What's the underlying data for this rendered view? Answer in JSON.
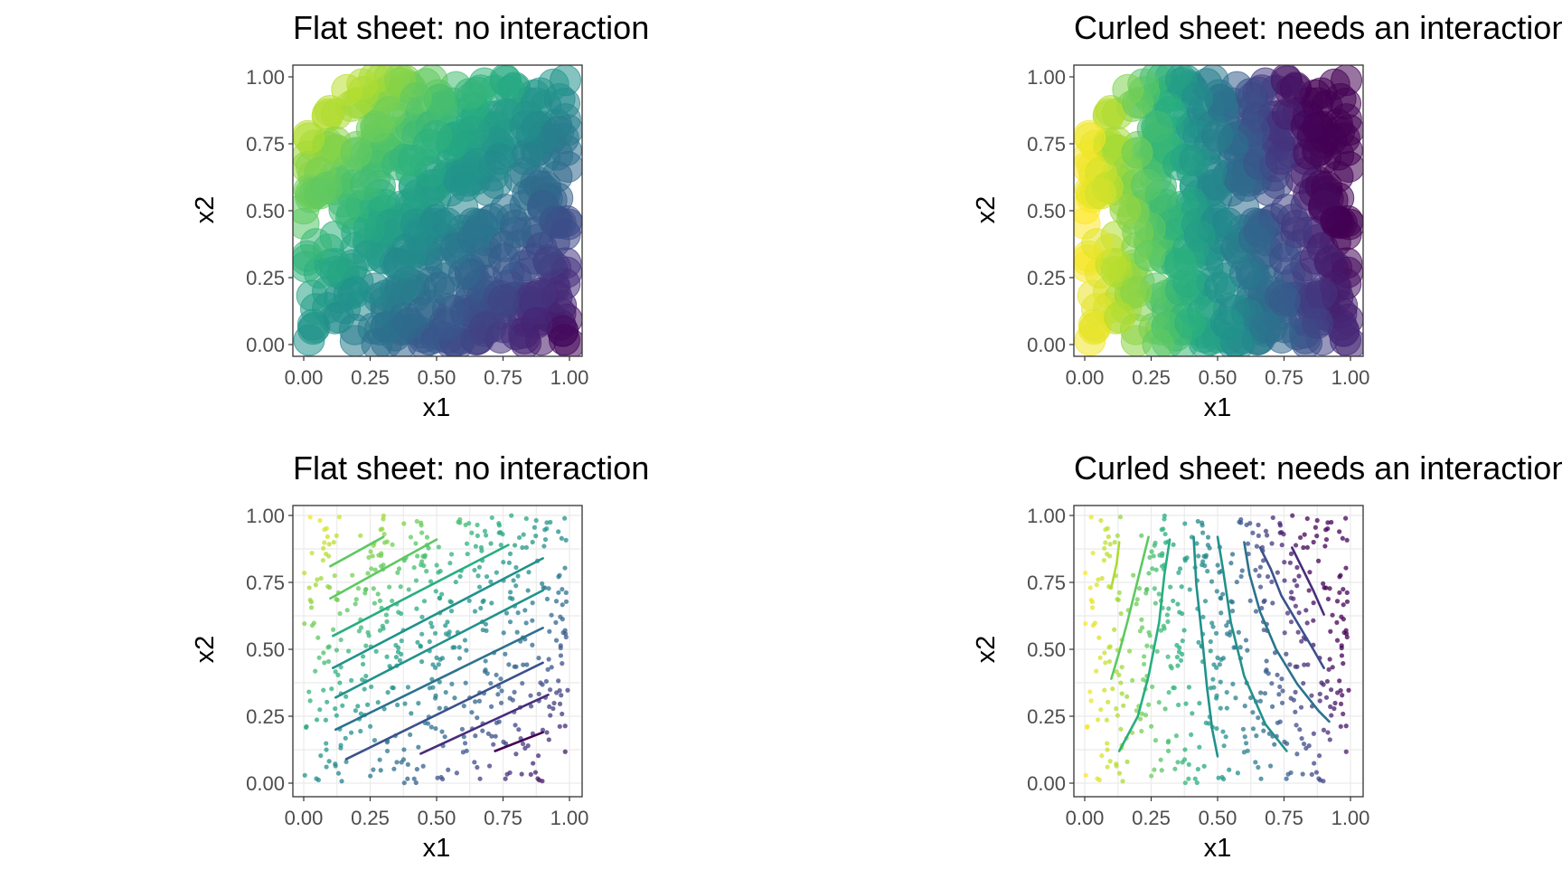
{
  "palette": [
    "#440154",
    "#472d7b",
    "#3b528b",
    "#2c728e",
    "#21918c",
    "#28ae80",
    "#5ec962",
    "#addc30",
    "#fde725"
  ],
  "chart_data": [
    {
      "type": "scatter",
      "title": "Flat sheet: no interaction",
      "xlabel": "x1",
      "ylabel": "x2",
      "xlim": [
        0,
        1
      ],
      "ylim": [
        0,
        1
      ],
      "x_ticks": [
        "0.00",
        "0.25",
        "0.50",
        "0.75",
        "1.00"
      ],
      "y_ticks": [
        "0.00",
        "0.25",
        "0.50",
        "0.75",
        "1.00"
      ],
      "grid": false,
      "points": "random uniform on [0,1]x[0,1], color = flat surface (0.5 + x2 - x1)",
      "marker": "large translucent circles"
    },
    {
      "type": "scatter",
      "title": "Curled sheet: needs an interaction",
      "xlabel": "x1",
      "ylabel": "x2",
      "xlim": [
        0,
        1
      ],
      "ylim": [
        0,
        1
      ],
      "x_ticks": [
        "0.00",
        "0.25",
        "0.50",
        "0.75",
        "1.00"
      ],
      "y_ticks": [
        "0.00",
        "0.25",
        "0.50",
        "0.75",
        "1.00"
      ],
      "grid": false,
      "points": "random uniform on [0,1]x[0,1], color = curled surface (1 - x1 - 0.4*x1*x2)",
      "marker": "large translucent circles"
    },
    {
      "type": "scatter",
      "title": "Flat sheet: no interaction",
      "xlabel": "x1",
      "ylabel": "x2",
      "xlim": [
        0,
        1
      ],
      "ylim": [
        0,
        1
      ],
      "x_ticks": [
        "0.00",
        "0.25",
        "0.50",
        "0.75",
        "1.00"
      ],
      "y_ticks": [
        "0.00",
        "0.25",
        "0.50",
        "0.75",
        "1.00"
      ],
      "grid": true,
      "marker": "small points with contour lines",
      "contours": [
        {
          "color": "#5ec962",
          "points": [
            [
              0.1,
              0.81
            ],
            [
              0.3,
              0.92
            ]
          ]
        },
        {
          "color": "#5ec962",
          "points": [
            [
              0.1,
              0.69
            ],
            [
              0.5,
              0.91
            ]
          ]
        },
        {
          "color": "#28ae80",
          "points": [
            [
              0.11,
              0.55
            ],
            [
              0.77,
              0.89
            ]
          ]
        },
        {
          "color": "#21918c",
          "points": [
            [
              0.11,
              0.43
            ],
            [
              0.9,
              0.84
            ]
          ]
        },
        {
          "color": "#21918c",
          "points": [
            [
              0.12,
              0.32
            ],
            [
              0.9,
              0.72
            ]
          ]
        },
        {
          "color": "#2c728e",
          "points": [
            [
              0.12,
              0.2
            ],
            [
              0.9,
              0.58
            ]
          ]
        },
        {
          "color": "#3b528b",
          "points": [
            [
              0.16,
              0.09
            ],
            [
              0.9,
              0.45
            ]
          ]
        },
        {
          "color": "#472d7b",
          "points": [
            [
              0.44,
              0.11
            ],
            [
              0.92,
              0.33
            ]
          ]
        },
        {
          "color": "#440154",
          "points": [
            [
              0.72,
              0.12
            ],
            [
              0.9,
              0.19
            ]
          ]
        }
      ]
    },
    {
      "type": "scatter",
      "title": "Curled sheet: needs an interaction",
      "xlabel": "x1",
      "ylabel": "x2",
      "xlim": [
        0,
        1
      ],
      "ylim": [
        0,
        1
      ],
      "x_ticks": [
        "0.00",
        "0.25",
        "0.50",
        "0.75",
        "1.00"
      ],
      "y_ticks": [
        "0.00",
        "0.25",
        "0.50",
        "0.75",
        "1.00"
      ],
      "grid": true,
      "marker": "small points with contour lines",
      "contours": [
        {
          "color": "#addc30",
          "points": [
            [
              0.13,
              0.9
            ],
            [
              0.12,
              0.82
            ],
            [
              0.1,
              0.73
            ]
          ]
        },
        {
          "color": "#5ec962",
          "points": [
            [
              0.24,
              0.92
            ],
            [
              0.2,
              0.76
            ],
            [
              0.16,
              0.6
            ],
            [
              0.13,
              0.49
            ],
            [
              0.1,
              0.39
            ]
          ]
        },
        {
          "color": "#28ae80",
          "points": [
            [
              0.32,
              0.91
            ],
            [
              0.3,
              0.78
            ],
            [
              0.28,
              0.6
            ],
            [
              0.24,
              0.4
            ],
            [
              0.2,
              0.25
            ],
            [
              0.13,
              0.12
            ]
          ]
        },
        {
          "color": "#21918c",
          "points": [
            [
              0.41,
              0.92
            ],
            [
              0.42,
              0.74
            ],
            [
              0.44,
              0.56
            ],
            [
              0.46,
              0.36
            ],
            [
              0.48,
              0.2
            ],
            [
              0.5,
              0.1
            ]
          ]
        },
        {
          "color": "#21918c",
          "points": [
            [
              0.5,
              0.92
            ],
            [
              0.52,
              0.8
            ],
            [
              0.55,
              0.6
            ],
            [
              0.6,
              0.4
            ],
            [
              0.68,
              0.22
            ],
            [
              0.76,
              0.12
            ]
          ]
        },
        {
          "color": "#2c728e",
          "points": [
            [
              0.6,
              0.9
            ],
            [
              0.62,
              0.78
            ],
            [
              0.66,
              0.64
            ],
            [
              0.72,
              0.5
            ],
            [
              0.8,
              0.37
            ],
            [
              0.88,
              0.27
            ],
            [
              0.92,
              0.23
            ]
          ]
        },
        {
          "color": "#3b528b",
          "points": [
            [
              0.66,
              0.88
            ],
            [
              0.7,
              0.8
            ],
            [
              0.74,
              0.7
            ],
            [
              0.8,
              0.6
            ],
            [
              0.86,
              0.5
            ],
            [
              0.9,
              0.43
            ]
          ]
        },
        {
          "color": "#472d7b",
          "points": [
            [
              0.78,
              0.88
            ],
            [
              0.82,
              0.8
            ],
            [
              0.86,
              0.72
            ],
            [
              0.9,
              0.63
            ]
          ]
        }
      ]
    }
  ]
}
